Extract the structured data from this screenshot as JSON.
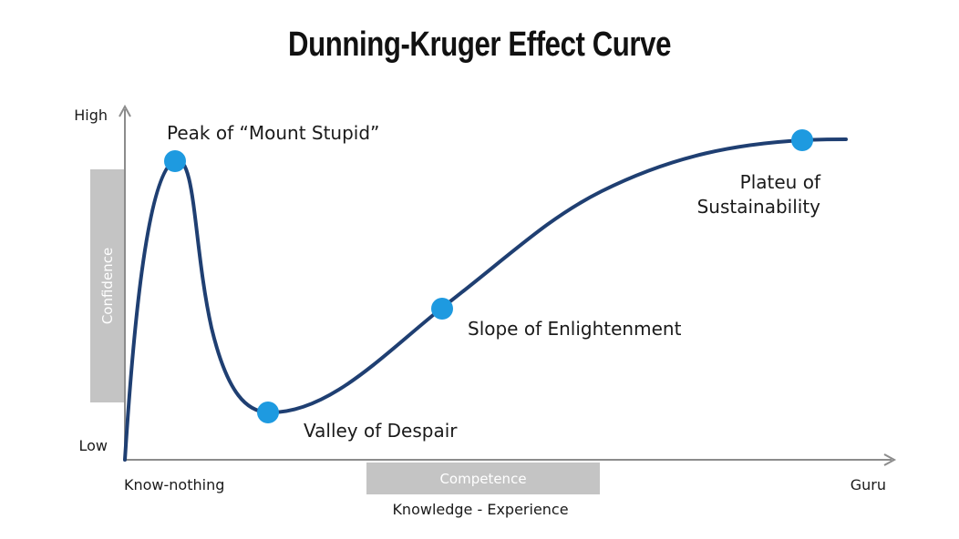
{
  "title": "Dunning-Kruger Effect Curve",
  "axes": {
    "y_high": "High",
    "y_low": "Low",
    "y_label": "Confidence",
    "x_start": "Know-nothing",
    "x_end": "Guru",
    "x_box_label": "Competence",
    "x_label": "Knowledge - Experience"
  },
  "points": [
    {
      "name": "peak",
      "label_lines": [
        "Peak of “Mount Stupid”"
      ]
    },
    {
      "name": "valley",
      "label_lines": [
        "Valley of Despair"
      ]
    },
    {
      "name": "slope",
      "label_lines": [
        "Slope of Enlightenment"
      ]
    },
    {
      "name": "plateau",
      "label_lines": [
        "Plateu of",
        "Sustainability"
      ]
    }
  ],
  "colors": {
    "curve": "#1f3f72",
    "point": "#1e9ae0",
    "axis": "#8c8c8c",
    "box": "#c4c4c4"
  }
}
